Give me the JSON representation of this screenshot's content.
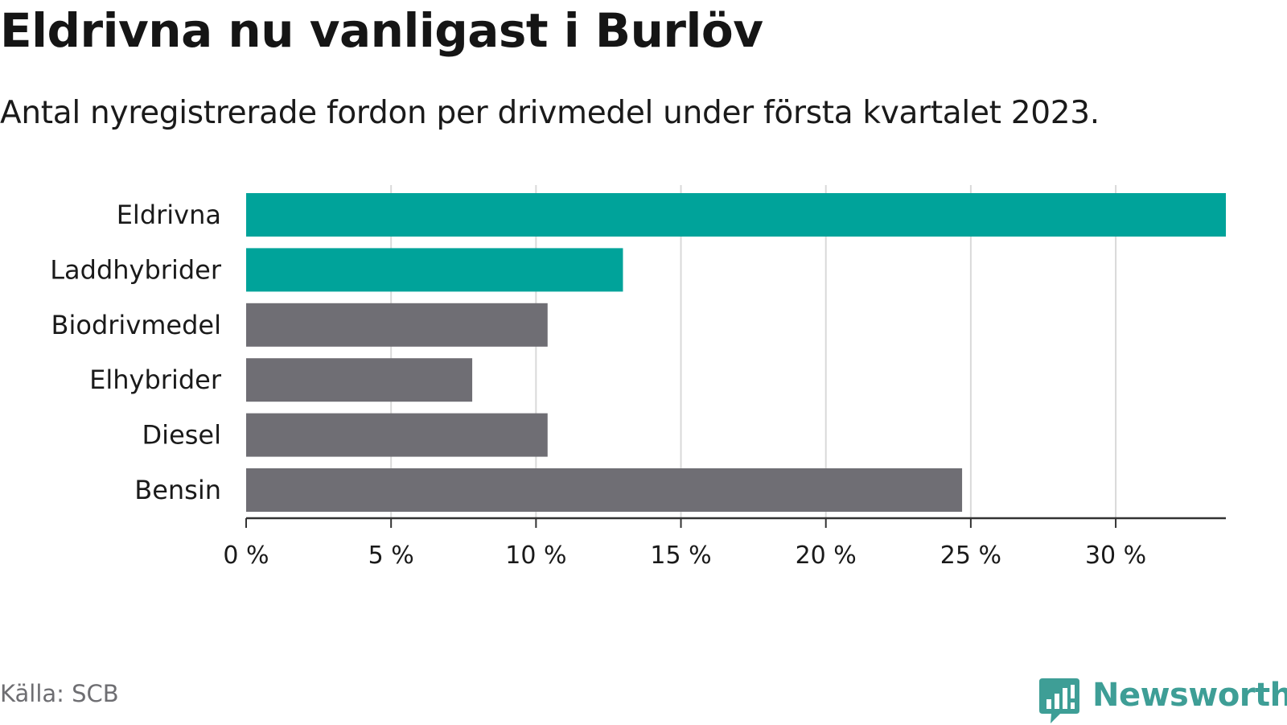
{
  "header": {
    "title": "Eldrivna nu vanligast i Burlöv",
    "subtitle": "Antal nyregistrerade fordon per drivmedel under första kvartalet 2023."
  },
  "footer": {
    "source": "Källa: SCB",
    "brand": "Newsworthy",
    "brand_icon": "bar-chart-speech-bubble-icon"
  },
  "colors": {
    "highlight": "#00a39a",
    "default": "#6f6e74",
    "grid": "#d9d9d9",
    "axis": "#333333",
    "brand": "#3e9e96"
  },
  "chart_data": {
    "type": "bar",
    "orientation": "horizontal",
    "categories": [
      "Eldrivna",
      "Laddhybrider",
      "Biodrivmedel",
      "Elhybrider",
      "Diesel",
      "Bensin"
    ],
    "values": [
      33.8,
      13.0,
      10.4,
      7.8,
      10.4,
      24.7
    ],
    "highlighted": [
      true,
      true,
      false,
      false,
      false,
      false
    ],
    "unit": "%",
    "xlim": [
      0,
      33.8
    ],
    "xticks": [
      0,
      5,
      10,
      15,
      20,
      25,
      30
    ],
    "xtick_labels": [
      "0 %",
      "5 %",
      "10 %",
      "15 %",
      "20 %",
      "25 %",
      "30 %"
    ],
    "grid": "vertical",
    "legend": "none"
  }
}
